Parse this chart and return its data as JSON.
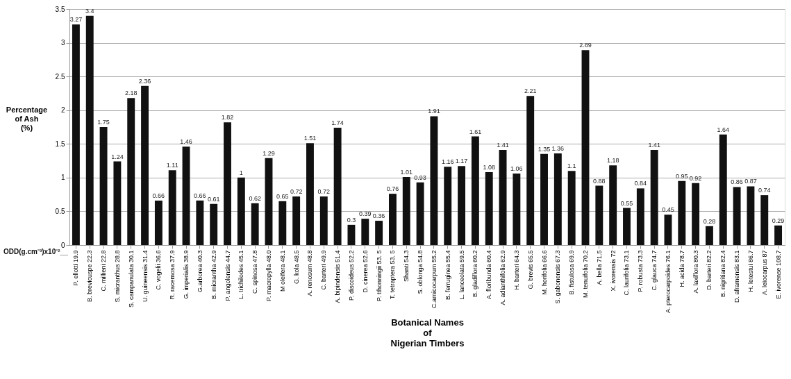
{
  "chart_data": {
    "type": "bar",
    "xlabel": "Botanical Names\nof\nNigerian Timbers",
    "ylabel": "Percentage\nof Ash\n(%)",
    "annotations": [
      "ODD(g.cm⁻³)x10⁻²__"
    ],
    "categories": [
      "P. ellotti 19.9",
      "B. brevicuspe 22.3",
      "C. millieni 22.8",
      "S. micranthus 28.8",
      "S. campanulata 30.1",
      "U. guineensis 31.4",
      "C. vogelii 36.6",
      "R. racemosa 37.9",
      "G. imperialis 38.9",
      "G.arborea 40.3",
      "B. micrantha 42.9",
      "P. angolensis 44.7",
      "L. trichilodes 45.1",
      "C. spinosa 47.8",
      "P. macropylla 48.0",
      "M oleifera 48.1",
      "G. kola 48.5",
      "A. renosum 48.8",
      "C. barteri 49.9",
      "A. bipindensis 51.4",
      "P. discoideus 52.2",
      "D. cinerea 52.6",
      "P. tthonningii 53. 5",
      "T. tetraptera 53. 5",
      "Shanti 54.3",
      "S. oblonga 54.8",
      "C.arnicocarpum 55.2",
      "B. ferruginea 55.4",
      "L. lanceolata 59.5",
      "B. gladiflora 60.2",
      "A. floribunda 60.4",
      "A. adianthifolia 62.9",
      "H. barteri 64.3",
      "G. brevis 65.5",
      "M. horifolia 66.6",
      "S. gabonensis 67.3",
      "B. fistulosa 69.9",
      "M. tenuifolia 70.2",
      "A. bella 71.5",
      "X. ivorensis 72",
      "C. laurifolia 73.1",
      "P. robusta 73.3",
      "C. glauca 74.7",
      "A. pterocarpoides 76.1",
      "H. acida 78.7",
      "A. laxiflora 80.3",
      "D. barteri 82.2",
      "B. nigritiana 82.4",
      "D. aframensis 83.1",
      "H. letestui 86.7",
      "A. leiocarpus 87",
      "E. ivorense 108.7"
    ],
    "values": [
      3.27,
      3.4,
      1.75,
      1.24,
      2.18,
      2.36,
      0.66,
      1.11,
      1.46,
      0.66,
      0.61,
      1.82,
      1,
      0.62,
      1.29,
      0.65,
      0.72,
      1.51,
      0.72,
      1.74,
      0.3,
      0.39,
      0.36,
      0.76,
      1.01,
      0.93,
      1.91,
      1.16,
      1.17,
      1.61,
      1.08,
      1.41,
      1.06,
      2.21,
      1.35,
      1.36,
      1.1,
      2.89,
      0.88,
      1.18,
      0.55,
      0.84,
      1.41,
      0.45,
      0.95,
      0.92,
      0.28,
      1.64,
      0.86,
      0.87,
      0.74,
      0.29
    ],
    "color": "#111111",
    "ylim": [
      0,
      3.5
    ],
    "yticks": [
      0,
      0.5,
      1,
      1.5,
      2,
      2.5,
      3,
      3.5
    ],
    "grid": "y",
    "data_labels": true
  }
}
